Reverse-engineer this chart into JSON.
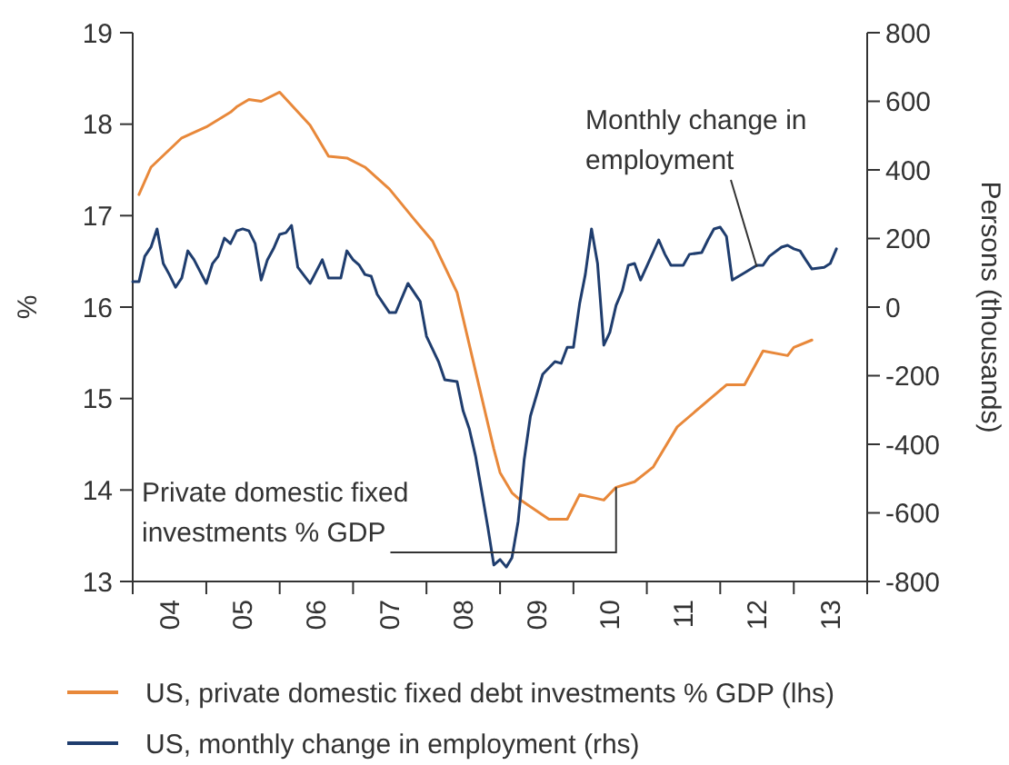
{
  "chart_data": {
    "type": "line",
    "ylabel": "%",
    "y2label": "Persons (thousands)",
    "xlim": [
      "2004-01",
      "2014-01"
    ],
    "xticks": [
      {
        "value": "2004-01",
        "label": null
      },
      {
        "value": "2004-07",
        "label": "04"
      },
      {
        "value": "2005-01",
        "label": null
      },
      {
        "value": "2005-07",
        "label": "05"
      },
      {
        "value": "2006-01",
        "label": null
      },
      {
        "value": "2006-07",
        "label": "06"
      },
      {
        "value": "2007-01",
        "label": null
      },
      {
        "value": "2007-07",
        "label": "07"
      },
      {
        "value": "2008-01",
        "label": null
      },
      {
        "value": "2008-07",
        "label": "08"
      },
      {
        "value": "2009-01",
        "label": null
      },
      {
        "value": "2009-07",
        "label": "09"
      },
      {
        "value": "2010-01",
        "label": null
      },
      {
        "value": "2010-07",
        "label": "10"
      },
      {
        "value": "2011-01",
        "label": null
      },
      {
        "value": "2011-07",
        "label": "11"
      },
      {
        "value": "2012-01",
        "label": null
      },
      {
        "value": "2012-07",
        "label": "12"
      },
      {
        "value": "2013-01",
        "label": null
      },
      {
        "value": "2013-07",
        "label": "13"
      },
      {
        "value": "2014-01",
        "label": null
      }
    ],
    "ylim": [
      13,
      19
    ],
    "yticks": [
      13,
      14,
      15,
      16,
      17,
      18,
      19
    ],
    "y2lim": [
      -800,
      800
    ],
    "y2ticks": [
      -800,
      -600,
      -400,
      -200,
      0,
      200,
      400,
      600,
      800
    ],
    "legend": "bottom",
    "line_style": "solid",
    "series": [
      {
        "name": "US, private domestic fixed debt investments % GDP (lhs)",
        "color": "#e8883a",
        "x": [
          "2004-02",
          "2004-04",
          "2004-09",
          "2005-01",
          "2005-05",
          "2005-06",
          "2005-08",
          "2005-10",
          "2006-01",
          "2006-06",
          "2006-09",
          "2006-12",
          "2007-03",
          "2007-07",
          "2007-11",
          "2008-02",
          "2008-06",
          "2008-12",
          "2009-01",
          "2009-03",
          "2009-04",
          "2009-09",
          "2009-12",
          "2010-02",
          "2010-06",
          "2010-08",
          "2010-11",
          "2011-02",
          "2011-06",
          "2012-02",
          "2012-05",
          "2012-08",
          "2012-12",
          "2013-01",
          "2013-04"
        ],
        "values": [
          17.23,
          17.53,
          17.85,
          17.97,
          18.13,
          18.19,
          18.27,
          18.25,
          18.35,
          17.99,
          17.65,
          17.63,
          17.53,
          17.29,
          16.96,
          16.72,
          16.16,
          14.45,
          14.19,
          13.97,
          13.91,
          13.68,
          13.68,
          13.95,
          13.89,
          14.03,
          14.09,
          14.25,
          14.69,
          15.15,
          15.15,
          15.52,
          15.47,
          15.56,
          15.64
        ]
      },
      {
        "name": "US, monthly change in employment (rhs)",
        "color": "#1f3d6e",
        "axis": "y2",
        "x": [
          "2004-01",
          "2004-02",
          "2004-03",
          "2004-04",
          "2004-05",
          "2004-06",
          "2004-07",
          "2004-08",
          "2004-09",
          "2004-10",
          "2004-11",
          "2005-01",
          "2005-02",
          "2005-03",
          "2005-04",
          "2005-05",
          "2005-06",
          "2005-07",
          "2005-08",
          "2005-09",
          "2005-10",
          "2005-11",
          "2005-12",
          "2006-01",
          "2006-02",
          "2006-03",
          "2006-04",
          "2006-06",
          "2006-08",
          "2006-09",
          "2006-11",
          "2006-12",
          "2007-01",
          "2007-02",
          "2007-03",
          "2007-04",
          "2007-05",
          "2007-07",
          "2007-08",
          "2007-10",
          "2007-12",
          "2008-01",
          "2008-03",
          "2008-04",
          "2008-06",
          "2008-07",
          "2008-08",
          "2008-09",
          "2008-10",
          "2008-11",
          "2008-12",
          "2009-01",
          "2009-02",
          "2009-03",
          "2009-04",
          "2009-05",
          "2009-06",
          "2009-08",
          "2009-10",
          "2009-11",
          "2009-12",
          "2010-01",
          "2010-02",
          "2010-03",
          "2010-04",
          "2010-05",
          "2010-06",
          "2010-07",
          "2010-08",
          "2010-09",
          "2010-10",
          "2010-11",
          "2010-12",
          "2011-02",
          "2011-03",
          "2011-04",
          "2011-05",
          "2011-07",
          "2011-08",
          "2011-10",
          "2011-11",
          "2011-12",
          "2012-01",
          "2012-02",
          "2012-03",
          "2012-05",
          "2012-07",
          "2012-08",
          "2012-09",
          "2012-11",
          "2012-12",
          "2013-01",
          "2013-02",
          "2013-03",
          "2013-04",
          "2013-06",
          "2013-07",
          "2013-08"
        ],
        "values": [
          74,
          74,
          148,
          175,
          228,
          127,
          95,
          58,
          85,
          164,
          138,
          69,
          127,
          148,
          201,
          185,
          222,
          228,
          222,
          185,
          79,
          138,
          170,
          212,
          217,
          238,
          116,
          69,
          138,
          85,
          85,
          164,
          138,
          122,
          95,
          90,
          37,
          -16,
          -16,
          69,
          16,
          -85,
          -159,
          -212,
          -217,
          -302,
          -355,
          -434,
          -535,
          -641,
          -752,
          -736,
          -758,
          -731,
          -625,
          -445,
          -318,
          -196,
          -159,
          -164,
          -117,
          -117,
          11,
          95,
          228,
          127,
          -111,
          -74,
          5,
          48,
          122,
          127,
          79,
          159,
          196,
          154,
          122,
          122,
          154,
          159,
          196,
          228,
          233,
          206,
          79,
          100,
          122,
          122,
          148,
          175,
          180,
          170,
          164,
          138,
          111,
          116,
          127,
          170
        ]
      }
    ],
    "annotations": [
      {
        "text": "Private domestic fixed investments % GDP",
        "x": "2010-08",
        "y": 14.03
      },
      {
        "text": "Monthly change in employment",
        "x": "2012-07",
        "y": 16.44
      }
    ]
  }
}
